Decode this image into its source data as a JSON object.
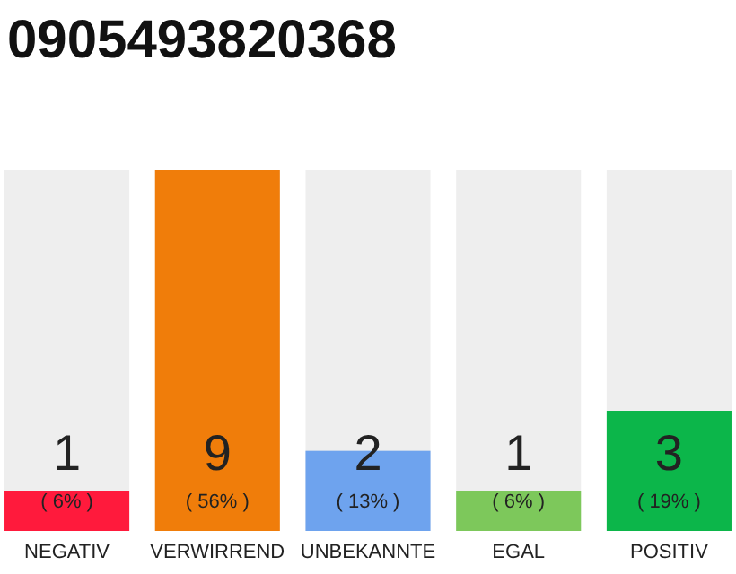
{
  "chart_data": {
    "type": "bar",
    "title": "0905493820368",
    "categories": [
      "NEGATIV",
      "VERWIRREND",
      "UNBEKANNTE",
      "EGAL",
      "POSITIV"
    ],
    "values": [
      1,
      9,
      2,
      1,
      3
    ],
    "colors": [
      "#ff1a3c",
      "#f07d0a",
      "#6ea3ee",
      "#7dc85b",
      "#0cb64a"
    ],
    "tick_labels": "x",
    "data_labels": true,
    "annotations": [
      "( 6% )",
      "( 56% )",
      "( 13% )",
      "( 6% )",
      "( 19% )"
    ]
  }
}
